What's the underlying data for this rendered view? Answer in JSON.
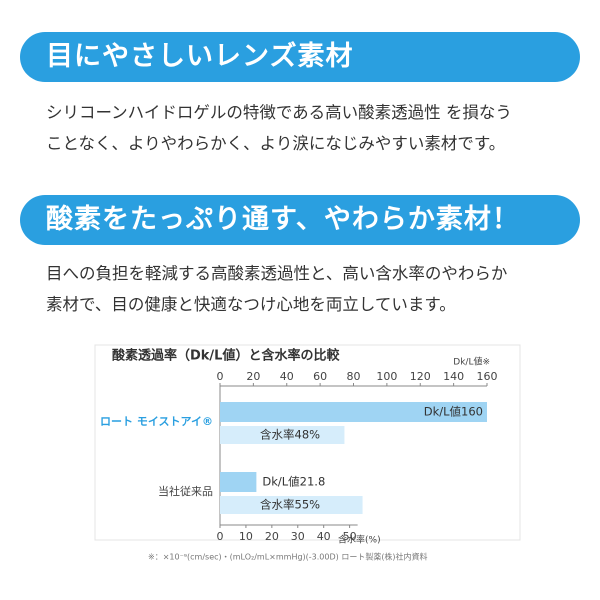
{
  "sections": [
    {
      "heading": "目にやさしいレンズ素材",
      "body": [
        "シリコーンハイドロゲルの特徴である高い酸素透過性 を損なう",
        "ことなく、よりやわらかく、より涙になじみやすい素材です。"
      ]
    },
    {
      "heading": "酸素をたっぷり通す、やわらか素材！",
      "body": [
        "目への負担を軽減する高酸素透過性と、高い含水率のやわらか",
        "素材で、目の健康と快適なつけ心地を両立しています。"
      ]
    }
  ],
  "chart_data": {
    "type": "bar",
    "orientation": "horizontal",
    "title": "酸素透過率（Dk/L値）と含水率の比較",
    "categories": [
      "ロート モイストアイ®",
      "当社従来品"
    ],
    "series": [
      {
        "color": "#9fd4f3",
        "values": [
          160,
          21.8
        ],
        "value_labels": [
          "Dk/L値160",
          "Dk/L値21.8"
        ]
      },
      {
        "color": "#d6edfb",
        "axis": "x2",
        "values": [
          48,
          55
        ],
        "value_labels": [
          "含水率48%",
          "含水率55%"
        ]
      }
    ],
    "xlabel": "Dk/L値※",
    "xlim": [
      0,
      160
    ],
    "xticks": [
      0,
      20,
      40,
      60,
      80,
      100,
      120,
      140,
      160
    ],
    "x2label": "含水率(%)",
    "x2lim": [
      0,
      103
    ],
    "x2ticks": [
      0,
      10,
      20,
      30,
      40,
      50
    ],
    "note": "※：×10⁻⁹(cm/sec)・(mLO₂/mL×mmHg)(-3.00D)  ロート製薬(株)社内資料"
  }
}
